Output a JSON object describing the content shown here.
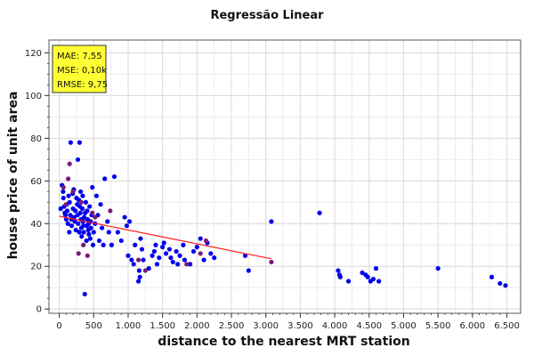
{
  "chart_data": {
    "type": "scatter",
    "title": "Regressão Linear",
    "xlabel": "distance to the nearest MRT station",
    "ylabel": "house price of unit area",
    "xlim": [
      -150,
      6700
    ],
    "ylim": [
      -2,
      126
    ],
    "xticks": [
      0,
      500,
      1000,
      1500,
      2000,
      2500,
      3000,
      3500,
      4000,
      4500,
      5000,
      5500,
      6000,
      6500
    ],
    "xtick_labels": [
      "0",
      "500",
      "1.000",
      "1.500",
      "2.000",
      "2.500",
      "3.000",
      "3.500",
      "4.000",
      "4.500",
      "5.000",
      "5.500",
      "6.000",
      "6.500"
    ],
    "yticks": [
      0,
      20,
      40,
      60,
      80,
      100,
      120
    ],
    "ytick_labels": [
      "0",
      "20",
      "40",
      "60",
      "80",
      "100",
      "120"
    ],
    "grid": true,
    "metrics": [
      "MAE: 7,55",
      "MSE: 0,10k",
      "RMSE: 9,75"
    ],
    "colors": {
      "points": "#0000ee",
      "highlight": "#7a1a7a",
      "line": "#ff2020",
      "legend_bg": "#ffff33"
    },
    "series": [
      {
        "color": "#0000ee",
        "points": [
          [
            20,
            47
          ],
          [
            40,
            58
          ],
          [
            55,
            55
          ],
          [
            60,
            52
          ],
          [
            70,
            48
          ],
          [
            80,
            45
          ],
          [
            90,
            44
          ],
          [
            100,
            42
          ],
          [
            110,
            49
          ],
          [
            115,
            46
          ],
          [
            125,
            40
          ],
          [
            135,
            53
          ],
          [
            145,
            36
          ],
          [
            150,
            50
          ],
          [
            160,
            44
          ],
          [
            165,
            78
          ],
          [
            175,
            42
          ],
          [
            180,
            39
          ],
          [
            195,
            54
          ],
          [
            200,
            47
          ],
          [
            210,
            56
          ],
          [
            215,
            43
          ],
          [
            225,
            41
          ],
          [
            235,
            46
          ],
          [
            240,
            37
          ],
          [
            250,
            52
          ],
          [
            260,
            49
          ],
          [
            265,
            44
          ],
          [
            270,
            70
          ],
          [
            275,
            40
          ],
          [
            285,
            51
          ],
          [
            290,
            36
          ],
          [
            295,
            78
          ],
          [
            300,
            48
          ],
          [
            305,
            45
          ],
          [
            310,
            55
          ],
          [
            315,
            42
          ],
          [
            320,
            38
          ],
          [
            325,
            34
          ],
          [
            335,
            47
          ],
          [
            340,
            53
          ],
          [
            345,
            41
          ],
          [
            350,
            39
          ],
          [
            355,
            36
          ],
          [
            360,
            43
          ],
          [
            370,
            7
          ],
          [
            375,
            45
          ],
          [
            385,
            50
          ],
          [
            395,
            32
          ],
          [
            400,
            39
          ],
          [
            405,
            46
          ],
          [
            410,
            42
          ],
          [
            420,
            37
          ],
          [
            425,
            40
          ],
          [
            430,
            35
          ],
          [
            440,
            48
          ],
          [
            450,
            33
          ],
          [
            455,
            41
          ],
          [
            460,
            38
          ],
          [
            470,
            44
          ],
          [
            480,
            57
          ],
          [
            490,
            30
          ],
          [
            500,
            36
          ],
          [
            520,
            40
          ],
          [
            540,
            53
          ],
          [
            560,
            44
          ],
          [
            580,
            32
          ],
          [
            600,
            49
          ],
          [
            620,
            38
          ],
          [
            640,
            30
          ],
          [
            660,
            61
          ],
          [
            700,
            41
          ],
          [
            720,
            36
          ],
          [
            760,
            30
          ],
          [
            800,
            62
          ],
          [
            850,
            36
          ],
          [
            900,
            32
          ],
          [
            950,
            43
          ],
          [
            980,
            39
          ],
          [
            1000,
            25
          ],
          [
            1020,
            41
          ],
          [
            1050,
            23
          ],
          [
            1080,
            21
          ],
          [
            1100,
            30
          ],
          [
            1150,
            13
          ],
          [
            1160,
            18
          ],
          [
            1170,
            15
          ],
          [
            1180,
            33
          ],
          [
            1200,
            28
          ],
          [
            1220,
            23
          ],
          [
            1300,
            19
          ],
          [
            1350,
            25
          ],
          [
            1380,
            27
          ],
          [
            1400,
            30
          ],
          [
            1420,
            21
          ],
          [
            1450,
            24
          ],
          [
            1500,
            29
          ],
          [
            1520,
            31
          ],
          [
            1550,
            26
          ],
          [
            1600,
            28
          ],
          [
            1620,
            24
          ],
          [
            1650,
            22
          ],
          [
            1700,
            27
          ],
          [
            1720,
            21
          ],
          [
            1750,
            25
          ],
          [
            1800,
            30
          ],
          [
            1820,
            23
          ],
          [
            1900,
            21
          ],
          [
            1950,
            27
          ],
          [
            2000,
            29
          ],
          [
            2050,
            33
          ],
          [
            2100,
            23
          ],
          [
            2150,
            31
          ],
          [
            2200,
            26
          ],
          [
            2250,
            24
          ],
          [
            2700,
            25
          ],
          [
            2750,
            18
          ],
          [
            3080,
            41
          ],
          [
            3780,
            45
          ],
          [
            4050,
            18
          ],
          [
            4070,
            16
          ],
          [
            4080,
            15
          ],
          [
            4200,
            13
          ],
          [
            4400,
            17
          ],
          [
            4450,
            16
          ],
          [
            4480,
            15
          ],
          [
            4520,
            13
          ],
          [
            4560,
            14
          ],
          [
            4600,
            19
          ],
          [
            4640,
            13
          ],
          [
            5500,
            19
          ],
          [
            6280,
            15
          ],
          [
            6400,
            12
          ],
          [
            6480,
            11
          ]
        ]
      },
      {
        "color": "#7a1a7a",
        "points": [
          [
            60,
            57
          ],
          [
            100,
            49
          ],
          [
            130,
            61
          ],
          [
            150,
            68
          ],
          [
            200,
            55
          ],
          [
            280,
            26
          ],
          [
            320,
            50
          ],
          [
            350,
            30
          ],
          [
            410,
            25
          ],
          [
            480,
            45
          ],
          [
            520,
            43
          ],
          [
            740,
            46
          ],
          [
            1150,
            23
          ],
          [
            1250,
            18
          ],
          [
            1850,
            21
          ],
          [
            2050,
            26
          ],
          [
            2130,
            32
          ],
          [
            3080,
            22
          ]
        ]
      }
    ],
    "regression_line": {
      "x": [
        0,
        3080
      ],
      "y": [
        43.5,
        23.5
      ]
    }
  }
}
